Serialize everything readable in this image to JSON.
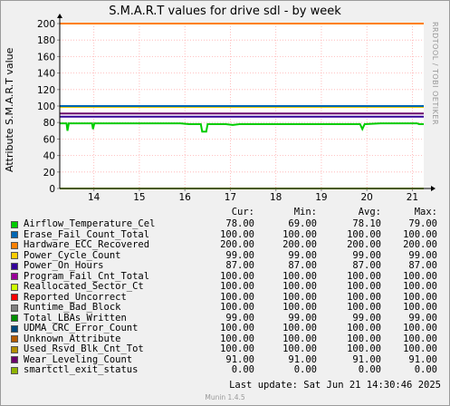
{
  "title": "S.M.A.R.T values for drive sdl - by week",
  "ylabel": "Attribute S.M.A.R.T value",
  "sidebar_text": "RRDTOOL / TOBI OETIKER",
  "chart_data": {
    "type": "line",
    "title": "S.M.A.R.T values for drive sdl - by week",
    "ylabel": "Attribute S.M.A.R.T value",
    "xlabel": "",
    "ylim": [
      0,
      200
    ],
    "yticks": [
      0,
      20,
      40,
      60,
      80,
      100,
      120,
      140,
      160,
      180,
      200
    ],
    "xticks": [
      "14",
      "15",
      "16",
      "17",
      "18",
      "19",
      "20",
      "21"
    ],
    "xlim": [
      13.25,
      21.25
    ],
    "grid": true,
    "series": [
      {
        "name": "Airflow_Temperature_Cel",
        "color": "#00cc00",
        "points": [
          [
            13.25,
            79
          ],
          [
            13.4,
            79
          ],
          [
            13.42,
            70
          ],
          [
            13.45,
            79
          ],
          [
            13.96,
            79
          ],
          [
            13.98,
            72
          ],
          [
            14.01,
            79
          ],
          [
            15.9,
            79
          ],
          [
            16.1,
            78
          ],
          [
            16.35,
            78
          ],
          [
            16.38,
            69
          ],
          [
            16.47,
            69
          ],
          [
            16.5,
            78
          ],
          [
            16.9,
            78
          ],
          [
            17.05,
            77
          ],
          [
            17.2,
            78
          ],
          [
            19.85,
            78
          ],
          [
            19.9,
            72
          ],
          [
            19.95,
            78
          ],
          [
            20.3,
            79
          ],
          [
            21.1,
            79
          ],
          [
            21.15,
            78
          ],
          [
            21.25,
            78
          ]
        ]
      },
      {
        "name": "Erase_Fail_Count_Total",
        "color": "#0066b3",
        "points": [
          [
            13.25,
            100
          ],
          [
            21.25,
            100
          ]
        ]
      },
      {
        "name": "Hardware_ECC_Recovered",
        "color": "#ff8000",
        "points": [
          [
            13.25,
            200
          ],
          [
            21.25,
            200
          ]
        ]
      },
      {
        "name": "Power_Cycle_Count",
        "color": "#ffcc00",
        "points": [
          [
            13.25,
            99
          ],
          [
            21.25,
            99
          ]
        ]
      },
      {
        "name": "Power_On_Hours",
        "color": "#330099",
        "points": [
          [
            13.25,
            87
          ],
          [
            21.25,
            87
          ]
        ]
      },
      {
        "name": "Program_Fail_Cnt_Total",
        "color": "#990099",
        "points": [
          [
            13.25,
            100
          ],
          [
            21.25,
            100
          ]
        ]
      },
      {
        "name": "Reallocated_Sector_Ct",
        "color": "#ccff00",
        "points": [
          [
            13.25,
            100
          ],
          [
            21.25,
            100
          ]
        ]
      },
      {
        "name": "Reported_Uncorrect",
        "color": "#ff0000",
        "points": [
          [
            13.25,
            100
          ],
          [
            21.25,
            100
          ]
        ]
      },
      {
        "name": "Runtime_Bad_Block",
        "color": "#808080",
        "points": [
          [
            13.25,
            100
          ],
          [
            21.25,
            100
          ]
        ]
      },
      {
        "name": "Total_LBAs_Written",
        "color": "#008f00",
        "points": [
          [
            13.25,
            99
          ],
          [
            21.25,
            99
          ]
        ]
      },
      {
        "name": "UDMA_CRC_Error_Count",
        "color": "#00487d",
        "points": [
          [
            13.25,
            100
          ],
          [
            21.25,
            100
          ]
        ]
      },
      {
        "name": "Unknown_Attribute",
        "color": "#b35a00",
        "points": [
          [
            13.25,
            100
          ],
          [
            21.25,
            100
          ]
        ]
      },
      {
        "name": "Used_Rsvd_Blk_Cnt_Tot",
        "color": "#b38f00",
        "points": [
          [
            13.25,
            100
          ],
          [
            21.25,
            100
          ]
        ]
      },
      {
        "name": "Wear_Leveling_Count",
        "color": "#6b006b",
        "points": [
          [
            13.25,
            91
          ],
          [
            21.25,
            91
          ]
        ]
      },
      {
        "name": "smartctl_exit_status",
        "color": "#8fb300",
        "points": [
          [
            13.25,
            0
          ],
          [
            21.25,
            0
          ]
        ]
      }
    ]
  },
  "legend": {
    "headers": {
      "cur": "Cur:",
      "min": "Min:",
      "avg": "Avg:",
      "max": "Max:"
    },
    "rows": [
      {
        "name": "Airflow_Temperature_Cel",
        "color": "#00cc00",
        "cur": "78.00",
        "min": "69.00",
        "avg": "78.10",
        "max": "79.00"
      },
      {
        "name": "Erase_Fail_Count_Total",
        "color": "#0066b3",
        "cur": "100.00",
        "min": "100.00",
        "avg": "100.00",
        "max": "100.00"
      },
      {
        "name": "Hardware_ECC_Recovered",
        "color": "#ff8000",
        "cur": "200.00",
        "min": "200.00",
        "avg": "200.00",
        "max": "200.00"
      },
      {
        "name": "Power_Cycle_Count",
        "color": "#ffcc00",
        "cur": "99.00",
        "min": "99.00",
        "avg": "99.00",
        "max": "99.00"
      },
      {
        "name": "Power_On_Hours",
        "color": "#330099",
        "cur": "87.00",
        "min": "87.00",
        "avg": "87.00",
        "max": "87.00"
      },
      {
        "name": "Program_Fail_Cnt_Total",
        "color": "#990099",
        "cur": "100.00",
        "min": "100.00",
        "avg": "100.00",
        "max": "100.00"
      },
      {
        "name": "Reallocated_Sector_Ct",
        "color": "#ccff00",
        "cur": "100.00",
        "min": "100.00",
        "avg": "100.00",
        "max": "100.00"
      },
      {
        "name": "Reported_Uncorrect",
        "color": "#ff0000",
        "cur": "100.00",
        "min": "100.00",
        "avg": "100.00",
        "max": "100.00"
      },
      {
        "name": "Runtime_Bad_Block",
        "color": "#808080",
        "cur": "100.00",
        "min": "100.00",
        "avg": "100.00",
        "max": "100.00"
      },
      {
        "name": "Total_LBAs_Written",
        "color": "#008f00",
        "cur": "99.00",
        "min": "99.00",
        "avg": "99.00",
        "max": "99.00"
      },
      {
        "name": "UDMA_CRC_Error_Count",
        "color": "#00487d",
        "cur": "100.00",
        "min": "100.00",
        "avg": "100.00",
        "max": "100.00"
      },
      {
        "name": "Unknown_Attribute",
        "color": "#b35a00",
        "cur": "100.00",
        "min": "100.00",
        "avg": "100.00",
        "max": "100.00"
      },
      {
        "name": "Used_Rsvd_Blk_Cnt_Tot",
        "color": "#b38f00",
        "cur": "100.00",
        "min": "100.00",
        "avg": "100.00",
        "max": "100.00"
      },
      {
        "name": "Wear_Leveling_Count",
        "color": "#6b006b",
        "cur": "91.00",
        "min": "91.00",
        "avg": "91.00",
        "max": "91.00"
      },
      {
        "name": "smartctl_exit_status",
        "color": "#8fb300",
        "cur": "0.00",
        "min": "0.00",
        "avg": "0.00",
        "max": "0.00"
      }
    ]
  },
  "footer": "Last update:  Sat Jun 21 14:30:46 2025",
  "munin": "Munin 1.4.5"
}
